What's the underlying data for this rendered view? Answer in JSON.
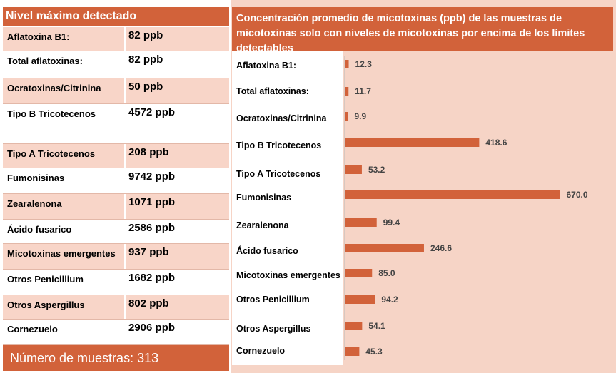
{
  "left_table": {
    "header": "Nivel máximo detectado",
    "rows": [
      {
        "name": "Aflatoxina B1:",
        "value": "82 ppb"
      },
      {
        "name": "Total aflatoxinas:",
        "value": "82 ppb"
      },
      {
        "name": "Ocratoxinas/Citrinina",
        "value": "50 ppb"
      },
      {
        "name": "Tipo B Tricotecenos",
        "value": "4572 ppb"
      },
      {
        "name": "Tipo A Tricotecenos",
        "value": "208 ppb"
      },
      {
        "name": "Fumonisinas",
        "value": "9742 ppb"
      },
      {
        "name": "Zearalenona",
        "value": "1071 ppb"
      },
      {
        "name": "Ácido fusarico",
        "value": "2586 ppb"
      },
      {
        "name": "Micotoxinas emergentes",
        "value": "937 ppb"
      },
      {
        "name": "Otros Penicillium",
        "value": "1682 ppb"
      },
      {
        "name": "Otros Aspergillus",
        "value": "802 ppb"
      },
      {
        "name": "Cornezuelo",
        "value": "2906 ppb"
      }
    ],
    "footer": "Número de muestras: 313"
  },
  "colors": {
    "accent": "#d2623a",
    "panel": "#f6d4c6",
    "row_pink": "#f8d5c8"
  },
  "chart_data": {
    "type": "bar",
    "orientation": "horizontal",
    "title": "Concentración promedio de micotoxinas (ppb) de las muestras de micotoxinas solo con niveles de micotoxinas por encima de los límites detectables",
    "categories": [
      "Aflatoxina B1:",
      "Total aflatoxinas:",
      "Ocratoxinas/Citrinina",
      "Tipo B Tricotecenos",
      "Tipo A Tricotecenos",
      "Fumonisinas",
      "Zearalenona",
      "Ácido fusarico",
      "Micotoxinas emergentes",
      "Otros Penicillium",
      "Otros Aspergillus",
      "Cornezuelo"
    ],
    "values": [
      12.3,
      11.7,
      9.9,
      418.6,
      53.2,
      670.0,
      99.4,
      246.6,
      85.0,
      94.2,
      54.1,
      45.3
    ],
    "value_labels": [
      "12.3",
      "11.7",
      "9.9",
      "418.6",
      "53.2",
      "670.0",
      "99.4",
      "246.6",
      "85.0",
      "94.2",
      "54.1",
      "45.3"
    ],
    "xlim": [
      0,
      700
    ],
    "grid": false,
    "bar_color": "#d2623a"
  }
}
